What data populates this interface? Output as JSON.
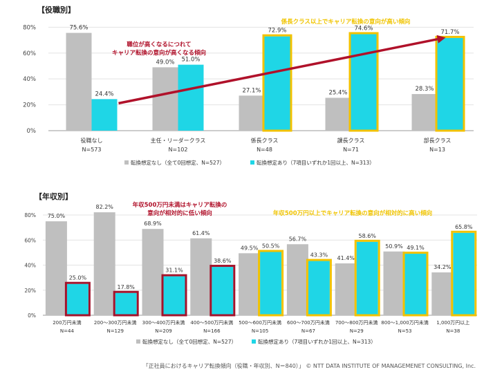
{
  "chart_data": [
    {
      "type": "bar",
      "section_title": "【役職別】",
      "categories": [
        "役職なし",
        "主任・リーダークラス",
        "係長クラス",
        "課長クラス",
        "部長クラス"
      ],
      "category_n": [
        "N=573",
        "N=102",
        "N=48",
        "N=71",
        "N=13"
      ],
      "series": [
        {
          "name": "転換想定なし（全て0回想定、N=527）",
          "values": [
            75.6,
            49.0,
            27.1,
            25.4,
            28.3
          ],
          "labels": [
            "75.6%",
            "49.0%",
            "27.1%",
            "25.4%",
            "28.3%"
          ],
          "color": "#bfbfbf"
        },
        {
          "name": "転換想定あり（7項目いずれか1回以上、N=313）",
          "values": [
            24.4,
            51.0,
            72.9,
            74.6,
            71.7
          ],
          "labels": [
            "24.4%",
            "51.0%",
            "72.9%",
            "74.6%",
            "71.7%"
          ],
          "color": "#1fd6e6"
        }
      ],
      "y_ticks": [
        "0%",
        "20%",
        "40%",
        "60%",
        "80%"
      ],
      "ylim": [
        0,
        85
      ],
      "highlight_yellow": [
        2,
        3,
        4
      ],
      "highlight_red": [],
      "annotations": [
        {
          "lines": [
            "職位が高くなるにつれて",
            "キャリア転換の意向が高くなる傾向"
          ],
          "color": "#b0112a"
        },
        {
          "lines": [
            "係長クラス以上でキャリア転換の意向が高い傾向"
          ],
          "color": "#f0c400"
        }
      ],
      "trend_arrow": {
        "from": 0,
        "to": 4,
        "color": "#b0112a"
      }
    },
    {
      "type": "bar",
      "section_title": "【年収別】",
      "categories": [
        "200万円未満",
        "200～300万円未満",
        "300～400万円未満",
        "400～500万円未満",
        "500～600万円未満",
        "600～700万円未満",
        "700～800万円未満",
        "800～1,000万円未満",
        "1,000万円以上"
      ],
      "category_n": [
        "N=44",
        "N=129",
        "N=209",
        "N=166",
        "N=105",
        "N=67",
        "N=29",
        "N=53",
        "N=38"
      ],
      "series": [
        {
          "name": "転換想定なし（全て0回想定、N=527）",
          "values": [
            75.0,
            82.2,
            68.9,
            61.4,
            49.5,
            56.7,
            41.4,
            50.9,
            34.2
          ],
          "labels": [
            "75.0%",
            "82.2%",
            "68.9%",
            "61.4%",
            "49.5%",
            "56.7%",
            "41.4%",
            "50.9%",
            "34.2%"
          ],
          "color": "#bfbfbf"
        },
        {
          "name": "転換想定あり（7項目いずれか1回以上、N=313）",
          "values": [
            25.0,
            17.8,
            31.1,
            38.6,
            50.5,
            43.3,
            58.6,
            49.1,
            65.8
          ],
          "labels": [
            "25.0%",
            "17.8%",
            "31.1%",
            "38.6%",
            "50.5%",
            "43.3%",
            "58.6%",
            "49.1%",
            "65.8%"
          ],
          "color": "#1fd6e6"
        }
      ],
      "y_ticks": [
        "0%",
        "20%",
        "40%",
        "60%",
        "80%"
      ],
      "ylim": [
        0,
        85
      ],
      "highlight_yellow": [
        4,
        5,
        6,
        7,
        8
      ],
      "highlight_red": [
        0,
        1,
        2,
        3
      ],
      "annotations": [
        {
          "lines": [
            "年収500万円未満はキャリア転換の",
            "意向が相対的に低い傾向"
          ],
          "color": "#b0112a"
        },
        {
          "lines": [
            "年収500万円以上でキャリア転換の意向が相対的に高い傾向"
          ],
          "color": "#f0c400"
        }
      ],
      "trend_arrow": null
    }
  ],
  "source_note": "「正社員におけるキャリア転換傾向（役職・年収別、N＝840）」 © NTT DATA INSTITUTE OF MANAGEMENET CONSULTING, Inc."
}
